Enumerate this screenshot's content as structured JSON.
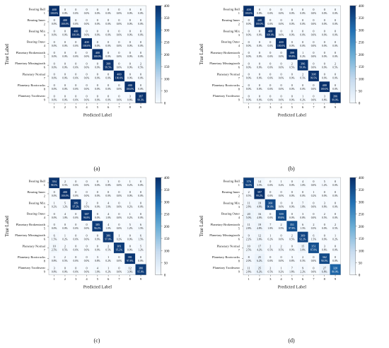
{
  "figure": {
    "panels": [
      "(a)",
      "(b)",
      "(c)",
      "(d)"
    ]
  },
  "chart_data": [
    {
      "type": "heatmap",
      "panel": "(a)",
      "xlabel": "Predicted Label",
      "ylabel": "True Label",
      "x_ticks": [
        "1",
        "2",
        "3",
        "4",
        "5",
        "6",
        "7",
        "8",
        "9"
      ],
      "y_ticks": [
        "1",
        "2",
        "3",
        "4",
        "5",
        "6",
        "7",
        "8",
        "9"
      ],
      "row_names": [
        "Bearing Ball",
        "Bearing Inner",
        "Bearing Mix",
        "Bearing Outer",
        "Planetary Brokentooth",
        "Planetary Missingtooth",
        "Planetary Normal",
        "Planetary Rootcracks",
        "Planetary Toothwear"
      ],
      "colorbar_ticks": [
        0,
        50,
        100,
        150,
        200,
        250,
        300,
        350,
        400
      ],
      "zlim": [
        0,
        400
      ],
      "values": [
        [
          400,
          0,
          0,
          0,
          0,
          0,
          0,
          0,
          0
        ],
        [
          0,
          400,
          0,
          0,
          0,
          0,
          0,
          0,
          0
        ],
        [
          0,
          0,
          400,
          0,
          0,
          0,
          0,
          0,
          0
        ],
        [
          0,
          0,
          0,
          400,
          0,
          0,
          0,
          0,
          0
        ],
        [
          0,
          0,
          0,
          0,
          400,
          0,
          0,
          0,
          0
        ],
        [
          0,
          0,
          0,
          0,
          0,
          398,
          0,
          0,
          2
        ],
        [
          0,
          0,
          0,
          0,
          0,
          0,
          400,
          0,
          0
        ],
        [
          0,
          0,
          0,
          0,
          0,
          0,
          0,
          400,
          0
        ],
        [
          0,
          0,
          0,
          0,
          0,
          0,
          0,
          3,
          397
        ]
      ],
      "percents": [
        [
          "100.0%",
          "0.0%",
          "0.0%",
          "0.0%",
          "0.0%",
          "0.0%",
          "0.0%",
          "0.0%",
          "0.0%"
        ],
        [
          "0.0%",
          "100.0%",
          "0.0%",
          "0.0%",
          "0.0%",
          "0.0%",
          "0.0%",
          "0.0%",
          "0.0%"
        ],
        [
          "0.0%",
          "0.0%",
          "100.0%",
          "0.0%",
          "0.0%",
          "0.0%",
          "0.0%",
          "0.0%",
          "0.0%"
        ],
        [
          "0.0%",
          "0.0%",
          "0.0%",
          "100.0%",
          "0.0%",
          "0.0%",
          "0.0%",
          "0.0%",
          "0.0%"
        ],
        [
          "0.0%",
          "0.0%",
          "0.0%",
          "0.0%",
          "100.0%",
          "0.0%",
          "0.0%",
          "0.0%",
          "0.0%"
        ],
        [
          "0.0%",
          "0.0%",
          "0.0%",
          "0.0%",
          "0.0%",
          "99.5%",
          "0.0%",
          "0.0%",
          "0.5%"
        ],
        [
          "0.0%",
          "0.0%",
          "0.0%",
          "0.0%",
          "0.0%",
          "0.0%",
          "100.0%",
          "0.0%",
          "0.0%"
        ],
        [
          "0.0%",
          "0.0%",
          "0.0%",
          "0.0%",
          "0.0%",
          "0.0%",
          "0.0%",
          "100.0%",
          "0.0%"
        ],
        [
          "0.0%",
          "0.0%",
          "0.0%",
          "0.0%",
          "0.0%",
          "0.0%",
          "0.0%",
          "0.8%",
          "99.3%"
        ]
      ]
    },
    {
      "type": "heatmap",
      "panel": "(b)",
      "xlabel": "Predicted Label",
      "ylabel": "True Label",
      "x_ticks": [
        "1",
        "2",
        "3",
        "4",
        "5",
        "6",
        "7",
        "8",
        "9"
      ],
      "y_ticks": [
        "1",
        "2",
        "3",
        "4",
        "5",
        "6",
        "7",
        "8",
        "9"
      ],
      "row_names": [
        "Bearing Ball",
        "Bearing Inner",
        "Bearing Mix",
        "Bearing Outer",
        "Planetary Brokentooth",
        "Planetary Missingtooth",
        "Planetary Normal",
        "Planetary Rootcracks",
        "Planetary Toothwear"
      ],
      "colorbar_ticks": [
        0,
        50,
        100,
        150,
        200,
        250,
        300,
        350,
        400
      ],
      "zlim": [
        0,
        400
      ],
      "values": [
        [
          400,
          0,
          0,
          0,
          0,
          0,
          0,
          0,
          0
        ],
        [
          0,
          400,
          0,
          0,
          0,
          0,
          0,
          0,
          0
        ],
        [
          0,
          0,
          400,
          0,
          0,
          0,
          0,
          0,
          0
        ],
        [
          0,
          0,
          0,
          400,
          0,
          0,
          0,
          0,
          0
        ],
        [
          0,
          0,
          0,
          0,
          399,
          1,
          0,
          0,
          0
        ],
        [
          0,
          0,
          0,
          0,
          2,
          396,
          0,
          0,
          2
        ],
        [
          0,
          0,
          0,
          0,
          0,
          2,
          398,
          0,
          0
        ],
        [
          0,
          0,
          0,
          0,
          0,
          0,
          0,
          400,
          0
        ],
        [
          0,
          0,
          0,
          0,
          0,
          1,
          0,
          3,
          396
        ]
      ],
      "percents": [
        [
          "100.0%",
          "0.0%",
          "0.0%",
          "0.0%",
          "0.0%",
          "0.0%",
          "0.0%",
          "0.0%",
          "0.0%"
        ],
        [
          "0.0%",
          "100.0%",
          "0.0%",
          "0.0%",
          "0.0%",
          "0.0%",
          "0.0%",
          "0.0%",
          "0.0%"
        ],
        [
          "0.0%",
          "0.0%",
          "100.0%",
          "0.0%",
          "0.0%",
          "0.0%",
          "0.0%",
          "0.0%",
          "0.0%"
        ],
        [
          "0.0%",
          "0.0%",
          "0.0%",
          "100.0%",
          "0.0%",
          "0.0%",
          "0.0%",
          "0.0%",
          "0.0%"
        ],
        [
          "0.0%",
          "0.0%",
          "0.0%",
          "0.0%",
          "99.8%",
          "0.2%",
          "0.0%",
          "0.0%",
          "0.0%"
        ],
        [
          "0.0%",
          "0.0%",
          "0.0%",
          "0.0%",
          "0.5%",
          "99.0%",
          "0.0%",
          "0.0%",
          "0.5%"
        ],
        [
          "0.0%",
          "0.0%",
          "0.0%",
          "0.0%",
          "0.0%",
          "0.5%",
          "99.5%",
          "0.0%",
          "0.0%"
        ],
        [
          "0.0%",
          "0.0%",
          "0.0%",
          "0.0%",
          "0.0%",
          "0.0%",
          "0.0%",
          "100.0%",
          "0.0%"
        ],
        [
          "0.0%",
          "0.0%",
          "0.0%",
          "0.0%",
          "0.0%",
          "0.2%",
          "0.0%",
          "0.8%",
          "99.0%"
        ]
      ]
    },
    {
      "type": "heatmap",
      "panel": "(c)",
      "xlabel": "Predicted Label",
      "ylabel": "True Label",
      "x_ticks": [
        "1",
        "2",
        "3",
        "4",
        "5",
        "6",
        "7",
        "8",
        "9"
      ],
      "y_ticks": [
        "1",
        "2",
        "3",
        "4",
        "5",
        "6",
        "7",
        "8",
        "9"
      ],
      "row_names": [
        "Bearing Ball",
        "Bearing Inner",
        "Bearing Mix",
        "Bearing Outer",
        "Planetary Brokentooth",
        "Planetary Missingtooth",
        "Planetary Normal",
        "Planetary Rootcracks",
        "Planetary Toothwear"
      ],
      "colorbar_ticks": [
        0,
        50,
        100,
        150,
        200,
        250,
        300,
        350,
        400
      ],
      "zlim": [
        0,
        400
      ],
      "values": [
        [
          394,
          2,
          0,
          0,
          0,
          3,
          0,
          1,
          0
        ],
        [
          0,
          400,
          0,
          0,
          0,
          0,
          0,
          0,
          0
        ],
        [
          1,
          5,
          389,
          2,
          0,
          4,
          0,
          1,
          0
        ],
        [
          0,
          4,
          0,
          387,
          0,
          4,
          0,
          1,
          0
        ],
        [
          0,
          0,
          0,
          0,
          385,
          4,
          0,
          5,
          6
        ],
        [
          6,
          1,
          0,
          0,
          0,
          386,
          1,
          0,
          6
        ],
        [
          10,
          2,
          0,
          0,
          0,
          2,
          381,
          0,
          5
        ],
        [
          3,
          2,
          0,
          0,
          3,
          1,
          0,
          391,
          0
        ],
        [
          3,
          0,
          0,
          0,
          4,
          1,
          0,
          12,
          380
        ]
      ],
      "percents": [
        [
          "98.5%",
          "0.5%",
          "0.0%",
          "0.0%",
          "0.0%",
          "0.8%",
          "0.0%",
          "0.2%",
          "0.0%"
        ],
        [
          "0.0%",
          "100.0%",
          "0.0%",
          "0.0%",
          "0.0%",
          "0.0%",
          "0.0%",
          "0.0%",
          "0.0%"
        ],
        [
          "0.2%",
          "1.2%",
          "97.2%",
          "0.5%",
          "0.0%",
          "1.0%",
          "0.0%",
          "0.2%",
          "0.0%"
        ],
        [
          "0.0%",
          "1.0%",
          "0.0%",
          "96.8%",
          "0.0%",
          "1.0%",
          "0.0%",
          "0.2%",
          "0.0%"
        ],
        [
          "0.0%",
          "0.0%",
          "0.0%",
          "0.0%",
          "96.2%",
          "1.0%",
          "0.0%",
          "1.2%",
          "1.5%"
        ],
        [
          "1.5%",
          "0.2%",
          "0.0%",
          "0.0%",
          "0.0%",
          "97.0%",
          "0.2%",
          "0.0%",
          "1.5%"
        ],
        [
          "2.5%",
          "0.5%",
          "0.0%",
          "0.0%",
          "0.0%",
          "0.5%",
          "95.2%",
          "0.0%",
          "1.2%"
        ],
        [
          "0.8%",
          "0.5%",
          "0.0%",
          "0.0%",
          "0.8%",
          "0.2%",
          "0.0%",
          "97.8%",
          "0.0%"
        ],
        [
          "0.8%",
          "0.0%",
          "0.0%",
          "0.0%",
          "1.0%",
          "0.2%",
          "0.0%",
          "3.0%",
          "95.0%"
        ]
      ]
    },
    {
      "type": "heatmap",
      "panel": "(d)",
      "xlabel": "Predicted Label",
      "ylabel": "True Label",
      "x_ticks": [
        "1",
        "2",
        "3",
        "4",
        "5",
        "6",
        "7",
        "8",
        "9"
      ],
      "y_ticks": [
        "1",
        "2",
        "3",
        "4",
        "5",
        "6",
        "7",
        "8",
        "9"
      ],
      "row_names": [
        "Bearing Ball",
        "Bearing Inner",
        "Bearing Mix",
        "Bearing Outer",
        "Planetary Brokentooth",
        "Planetary Missingtooth",
        "Planetary Normal",
        "Planetary Rootcracks",
        "Planetary Toothwear"
      ],
      "colorbar_ticks": [
        0,
        50,
        100,
        150,
        200,
        250,
        300,
        350,
        400
      ],
      "zlim": [
        0,
        400
      ],
      "values": [
        [
          376,
          14,
          0,
          1,
          0,
          4,
          0,
          5,
          0
        ],
        [
          2,
          397,
          0,
          0,
          0,
          0,
          1,
          0,
          0
        ],
        [
          11,
          19,
          360,
          0,
          0,
          7,
          0,
          3,
          0
        ],
        [
          20,
          16,
          0,
          359,
          0,
          3,
          0,
          2,
          0
        ],
        [
          11,
          19,
          7,
          2,
          351,
          6,
          2,
          0,
          2
        ],
        [
          9,
          12,
          1,
          0,
          2,
          369,
          6,
          0,
          1
        ],
        [
          10,
          17,
          2,
          2,
          0,
          15,
          351,
          3,
          0
        ],
        [
          8,
          25,
          0,
          0,
          3,
          2,
          0,
          362,
          0
        ],
        [
          11,
          25,
          2,
          1,
          7,
          9,
          0,
          27,
          320
        ]
      ],
      "percents": [
        [
          "94.0%",
          "3.5%",
          "0.0%",
          "0.2%",
          "0.0%",
          "1.0%",
          "0.0%",
          "1.2%",
          "0.0%"
        ],
        [
          "0.5%",
          "99.2%",
          "0.0%",
          "0.0%",
          "0.0%",
          "0.0%",
          "0.2%",
          "0.0%",
          "0.0%"
        ],
        [
          "2.8%",
          "4.8%",
          "90.0%",
          "0.0%",
          "0.0%",
          "1.8%",
          "0.0%",
          "0.8%",
          "0.0%"
        ],
        [
          "5.0%",
          "4.0%",
          "0.0%",
          "89.8%",
          "0.0%",
          "0.8%",
          "0.0%",
          "0.5%",
          "0.0%"
        ],
        [
          "2.8%",
          "4.8%",
          "1.8%",
          "0.5%",
          "87.8%",
          "1.5%",
          "0.5%",
          "0.0%",
          "0.5%"
        ],
        [
          "2.2%",
          "3.0%",
          "0.2%",
          "0.0%",
          "0.5%",
          "92.2%",
          "1.5%",
          "0.0%",
          "0.2%"
        ],
        [
          "2.5%",
          "4.2%",
          "0.5%",
          "0.5%",
          "0.0%",
          "3.8%",
          "87.8%",
          "0.8%",
          "0.0%"
        ],
        [
          "2.0%",
          "6.2%",
          "0.0%",
          "0.0%",
          "0.8%",
          "0.5%",
          "0.0%",
          "90.5%",
          "0.0%"
        ],
        [
          "2.8%",
          "6.2%",
          "0.5%",
          "0.2%",
          "1.8%",
          "2.2%",
          "0.0%",
          "6.8%",
          "80.0%"
        ]
      ]
    }
  ]
}
